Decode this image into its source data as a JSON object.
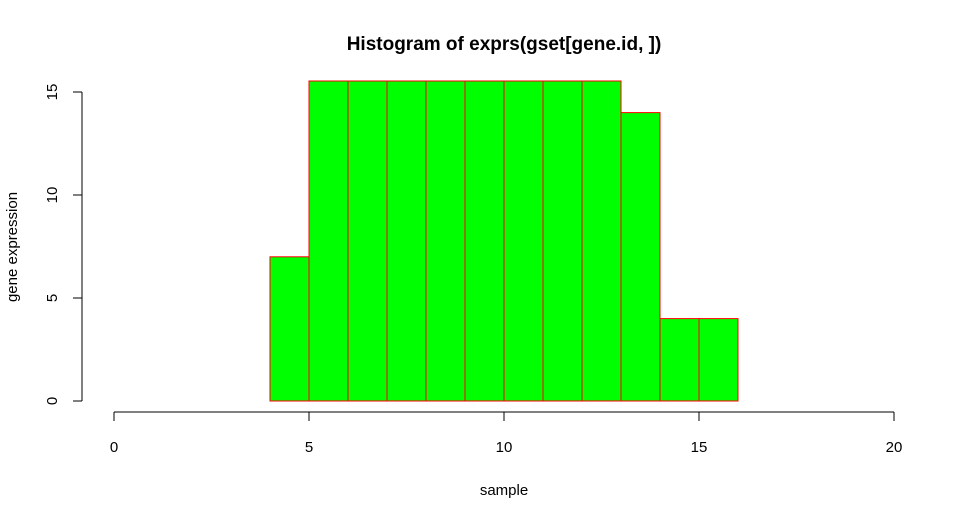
{
  "chart_data": {
    "type": "bar",
    "title": "Histogram of exprs(gset[gene.id, ])",
    "xlabel": "sample",
    "ylabel": "gene expression",
    "xlim": [
      0,
      20
    ],
    "ylim": [
      0,
      15
    ],
    "x_ticks": [
      0,
      5,
      10,
      15,
      20
    ],
    "y_ticks": [
      0,
      5,
      10,
      15
    ],
    "bins": [
      {
        "start": 4,
        "end": 5,
        "count": 7
      },
      {
        "start": 5,
        "end": 6,
        "count": 16
      },
      {
        "start": 6,
        "end": 7,
        "count": 16
      },
      {
        "start": 7,
        "end": 8,
        "count": 16
      },
      {
        "start": 8,
        "end": 9,
        "count": 16
      },
      {
        "start": 9,
        "end": 10,
        "count": 16
      },
      {
        "start": 10,
        "end": 11,
        "count": 16
      },
      {
        "start": 11,
        "end": 12,
        "count": 16
      },
      {
        "start": 12,
        "end": 13,
        "count": 16
      },
      {
        "start": 13,
        "end": 14,
        "count": 14
      },
      {
        "start": 14,
        "end": 15,
        "count": 4
      },
      {
        "start": 15,
        "end": 16,
        "count": 4
      }
    ],
    "bar_fill": "#00ff00",
    "bar_border": "#ff0000",
    "grid": false,
    "legend": "none"
  }
}
